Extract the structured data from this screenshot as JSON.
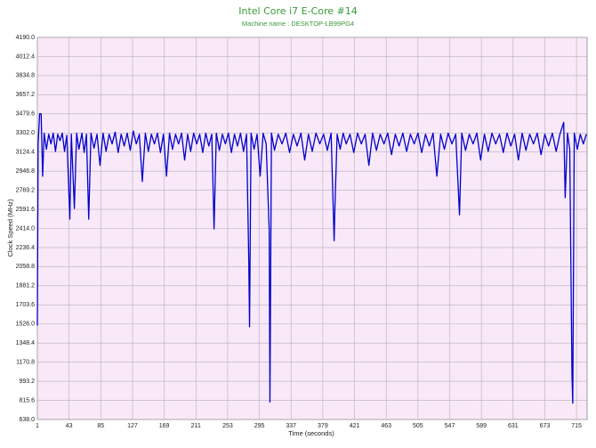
{
  "chart_data": {
    "type": "line",
    "title": "Intel Core i7 E-Core #14",
    "subtitle": "Machine name : DESKTOP-LB99PG4",
    "x_label": "Time (seconds)",
    "y_label": "Clock Speed (MHz)",
    "xlim": [
      1,
      729
    ],
    "ylim": [
      638,
      4190
    ],
    "xticks": [
      1,
      43,
      85,
      127,
      169,
      211,
      253,
      295,
      337,
      379,
      421,
      463,
      505,
      547,
      589,
      631,
      673,
      715
    ],
    "yticks": [
      {
        "value": 638,
        "label": "638.0"
      },
      815.6,
      993.2,
      1170.8,
      1348.4,
      {
        "value": 1526,
        "label": "1526.0"
      },
      1703.6,
      1881.2,
      2058.8,
      2236.4,
      {
        "value": 2414,
        "label": "2414.0"
      },
      2591.6,
      2769.2,
      2946.8,
      3124.4,
      {
        "value": 3302,
        "label": "3302.0"
      },
      3479.6,
      3657.2,
      3834.8,
      4012.4,
      {
        "value": 4190,
        "label": "4190.0"
      }
    ],
    "grid": true,
    "background": "#f8e8f8",
    "series": [
      {
        "name": "Clock Speed",
        "color": "#0000cc",
        "x": [
          1,
          2,
          4,
          6,
          8,
          10,
          13,
          16,
          19,
          22,
          25,
          28,
          31,
          34,
          37,
          40,
          44,
          46,
          50,
          53,
          56,
          60,
          63,
          66,
          69,
          72,
          76,
          80,
          84,
          88,
          92,
          96,
          100,
          104,
          108,
          112,
          116,
          120,
          124,
          128,
          132,
          136,
          140,
          144,
          148,
          152,
          156,
          160,
          164,
          168,
          172,
          176,
          180,
          184,
          188,
          192,
          196,
          200,
          204,
          208,
          212,
          216,
          220,
          224,
          228,
          232,
          235,
          238,
          242,
          246,
          250,
          254,
          258,
          262,
          266,
          270,
          274,
          278,
          281,
          282,
          284,
          288,
          292,
          296,
          300,
          304,
          308,
          309,
          311,
          315,
          320,
          325,
          330,
          335,
          340,
          345,
          350,
          355,
          360,
          365,
          370,
          375,
          380,
          385,
          390,
          394,
          395,
          398,
          402,
          406,
          410,
          415,
          420,
          425,
          430,
          435,
          440,
          445,
          450,
          455,
          460,
          465,
          470,
          475,
          480,
          485,
          490,
          495,
          500,
          505,
          510,
          515,
          520,
          525,
          530,
          535,
          540,
          545,
          550,
          555,
          560,
          563,
          568,
          573,
          578,
          583,
          588,
          593,
          598,
          603,
          608,
          613,
          618,
          623,
          628,
          633,
          638,
          643,
          648,
          653,
          658,
          663,
          668,
          673,
          678,
          683,
          688,
          693,
          698,
          700,
          703,
          706,
          709,
          710,
          712,
          716,
          720,
          724,
          728
        ],
        "values": [
          1510,
          3200,
          3480,
          3480,
          2900,
          3300,
          3150,
          3290,
          3200,
          3300,
          3130,
          3290,
          3230,
          3300,
          3130,
          3280,
          2500,
          3290,
          2600,
          3300,
          3150,
          3300,
          3120,
          3290,
          2500,
          3300,
          3160,
          3290,
          3000,
          3300,
          3130,
          3290,
          3200,
          3310,
          3120,
          3290,
          3180,
          3300,
          3140,
          3320,
          3200,
          3290,
          2850,
          3300,
          3130,
          3290,
          3200,
          3300,
          3120,
          3290,
          2900,
          3300,
          3150,
          3290,
          3200,
          3300,
          3050,
          3290,
          3130,
          3300,
          3200,
          3290,
          3120,
          3300,
          3180,
          3290,
          2410,
          3300,
          3140,
          3290,
          3200,
          3300,
          3120,
          3290,
          3180,
          3300,
          3130,
          3290,
          2100,
          1500,
          3300,
          3150,
          3290,
          2900,
          3300,
          3200,
          2400,
          800,
          3300,
          3140,
          3290,
          3200,
          3300,
          3120,
          3290,
          3180,
          3300,
          3050,
          3290,
          3130,
          3300,
          3200,
          3290,
          3140,
          3300,
          2300,
          2600,
          3290,
          3150,
          3300,
          3200,
          3290,
          3120,
          3300,
          3200,
          3290,
          3000,
          3300,
          3140,
          3290,
          3200,
          3300,
          3100,
          3290,
          3180,
          3300,
          3130,
          3290,
          3200,
          3300,
          3120,
          3290,
          3180,
          3300,
          2900,
          3290,
          3150,
          3300,
          3200,
          3290,
          2540,
          3300,
          3140,
          3290,
          3200,
          3300,
          3050,
          3290,
          3130,
          3300,
          3200,
          3290,
          3120,
          3300,
          3180,
          3290,
          3050,
          3300,
          3140,
          3290,
          3200,
          3300,
          3100,
          3290,
          3180,
          3300,
          3130,
          3290,
          3400,
          2700,
          3300,
          3150,
          1050,
          790,
          3300,
          3150,
          3290,
          3200,
          3290
        ]
      }
    ]
  }
}
